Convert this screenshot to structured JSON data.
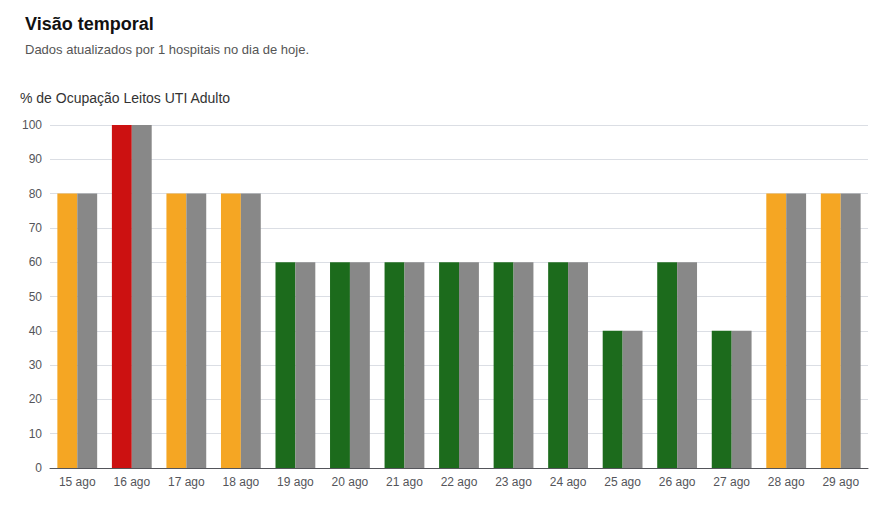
{
  "chart_data": {
    "type": "bar",
    "title": "Visão temporal",
    "subtitle": "Dados atualizados por 1 hospitais no dia de hoje.",
    "ylabel": "% de Ocupação Leitos UTI Adulto",
    "categories": [
      "15 ago",
      "16 ago",
      "17 ago",
      "18 ago",
      "19 ago",
      "20 ago",
      "21 ago",
      "22 ago",
      "23 ago",
      "24 ago",
      "25 ago",
      "26 ago",
      "27 ago",
      "28 ago",
      "29 ago"
    ],
    "series": [
      {
        "colors": [
          "#F5A623",
          "#CC1111",
          "#F5A623",
          "#F5A623",
          "#1C6B1C",
          "#1C6B1C",
          "#1C6B1C",
          "#1C6B1C",
          "#1C6B1C",
          "#1C6B1C",
          "#1C6B1C",
          "#1C6B1C",
          "#1C6B1C",
          "#F5A623",
          "#F5A623"
        ],
        "values": [
          80,
          100,
          80,
          80,
          60,
          60,
          60,
          60,
          60,
          60,
          40,
          60,
          40,
          80,
          80
        ]
      },
      {
        "color": "#888888",
        "values": [
          80,
          100,
          80,
          80,
          60,
          60,
          60,
          60,
          60,
          60,
          40,
          60,
          40,
          80,
          80
        ]
      }
    ],
    "ylim": [
      0,
      100
    ],
    "yticks": [
      0,
      10,
      20,
      30,
      40,
      50,
      60,
      70,
      80,
      90,
      100
    ],
    "grid": true
  }
}
